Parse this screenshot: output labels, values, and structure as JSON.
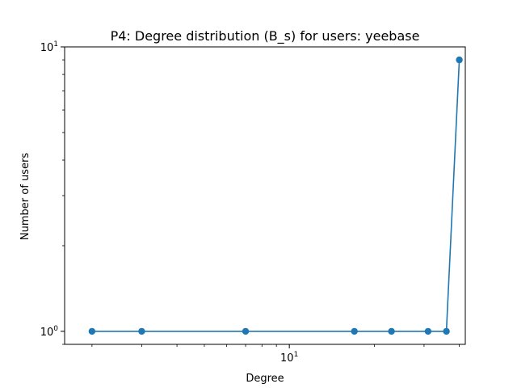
{
  "chart_data": {
    "type": "line",
    "title": "P4: Degree distribution (B_s) for users: yeebase",
    "xlabel": "Degree",
    "ylabel": "Number of users",
    "xscale": "log",
    "yscale": "log",
    "xlim": [
      1.6,
      42
    ],
    "ylim": [
      0.9,
      10
    ],
    "grid": false,
    "color": "#1f77b4",
    "marker": "circle",
    "series": [
      {
        "x": [
          2,
          3,
          7,
          17,
          23,
          31,
          36,
          40
        ],
        "y": [
          1,
          1,
          1,
          1,
          1,
          1,
          1,
          9
        ]
      }
    ],
    "x_ticks": [
      {
        "value": 10,
        "base": "10",
        "exp": "1"
      }
    ],
    "y_ticks": [
      {
        "value": 1,
        "base": "10",
        "exp": "0"
      },
      {
        "value": 10,
        "base": "10",
        "exp": "1"
      }
    ]
  }
}
